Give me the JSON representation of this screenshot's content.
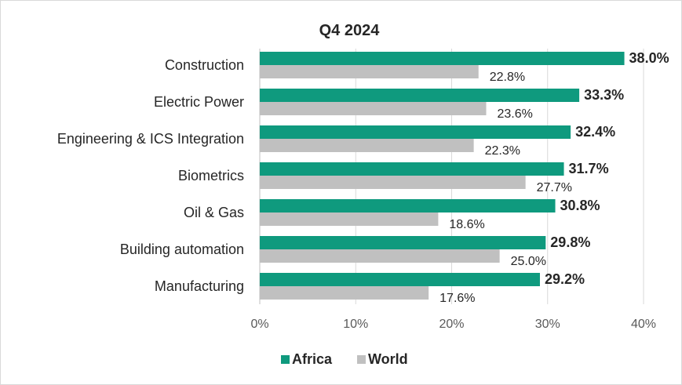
{
  "chart_data": {
    "type": "bar",
    "orientation": "horizontal",
    "title": "Q4 2024",
    "categories": [
      "Construction",
      "Electric Power",
      "Engineering & ICS Integration",
      "Biometrics",
      "Oil & Gas",
      "Building automation",
      "Manufacturing"
    ],
    "series": [
      {
        "name": "Africa",
        "color": "#0f9a7e",
        "values": [
          38.0,
          33.3,
          32.4,
          31.7,
          30.8,
          29.8,
          29.2
        ],
        "labels": [
          "38.0%",
          "33.3%",
          "32.4%",
          "31.7%",
          "30.8%",
          "29.8%",
          "29.2%"
        ]
      },
      {
        "name": "World",
        "color": "#c0c0c0",
        "values": [
          22.8,
          23.6,
          22.3,
          27.7,
          18.6,
          25.0,
          17.6
        ],
        "labels": [
          "22.8%",
          "23.6%",
          "22.3%",
          "27.7%",
          "18.6%",
          "25.0%",
          "17.6%"
        ]
      }
    ],
    "xlim": [
      0,
      40
    ],
    "xticks": [
      0,
      10,
      20,
      30,
      40
    ],
    "xtick_labels": [
      "0%",
      "10%",
      "20%",
      "30%",
      "40%"
    ],
    "xlabel": "",
    "ylabel": "",
    "grid": true,
    "legend_position": "bottom-center"
  }
}
